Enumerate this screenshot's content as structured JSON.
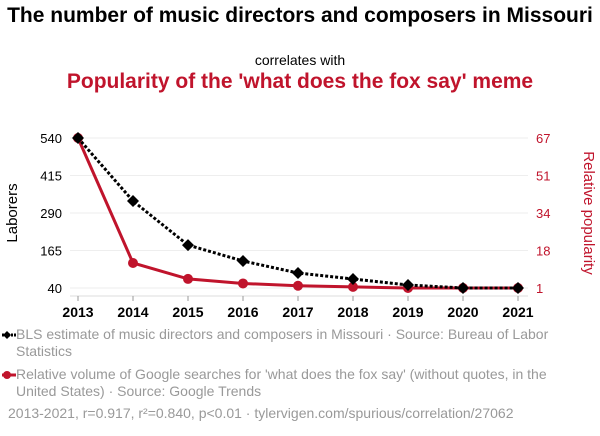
{
  "title": "The number of music directors and composers in Missouri",
  "correlates": "correlates with",
  "subtitle": "Popularity of the 'what does the fox say' meme",
  "colors": {
    "series1": "#000000",
    "series2": "#c0142c",
    "grid": "#eeeeee"
  },
  "chart_data": {
    "type": "line",
    "x": [
      2013,
      2014,
      2015,
      2016,
      2017,
      2018,
      2019,
      2020,
      2021
    ],
    "xticks": [
      "2013",
      "2014",
      "2015",
      "2016",
      "2017",
      "2018",
      "2019",
      "2020",
      "2021"
    ],
    "ylabel": "Laborers",
    "y2label": "Relative popularity",
    "yticks": [
      "540",
      "415",
      "290",
      "165",
      "40"
    ],
    "ylim": [
      40,
      540
    ],
    "y2ticks": [
      "67",
      "51",
      "34",
      "18",
      "1"
    ],
    "y2lim": [
      1,
      67
    ],
    "series": [
      {
        "name": "BLS estimate of music directors and composers in Missouri · Source: Bureau of Labor Statistics",
        "axis": "left",
        "values": [
          540,
          330,
          183,
          130,
          90,
          70,
          50,
          40,
          40
        ]
      },
      {
        "name": "Relative volume of Google searches for 'what does the fox say' (without quotes, in the United States) · Source: Google Trends",
        "axis": "right",
        "values": [
          67,
          12,
          5,
          3,
          2,
          1.5,
          1,
          1,
          1
        ]
      }
    ]
  },
  "footer": "2013-2021, r=0.917, r²=0.840, p<0.01 · tylervigen.com/spurious/correlation/27062"
}
